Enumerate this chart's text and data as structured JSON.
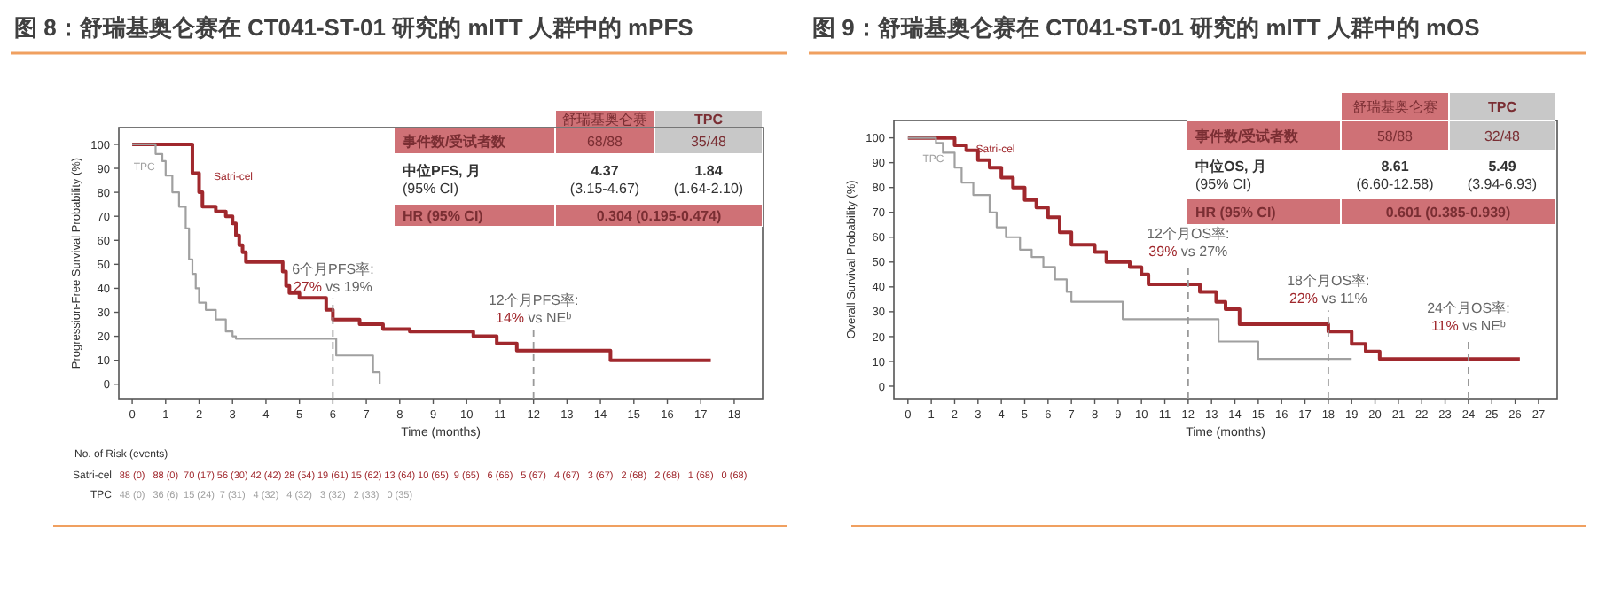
{
  "chart_data": [
    {
      "type": "step",
      "title": "图 8：舒瑞基奥仑赛在 CT041-ST-01 研究的 mITT 人群中的 mPFS",
      "xlabel": "Time (months)",
      "ylabel": "Progression-Free Survival Probability (%)",
      "xlim": [
        -0.4,
        18.85
      ],
      "ylim": [
        -6,
        107
      ],
      "xticks": [
        0,
        1,
        2,
        3,
        4,
        5,
        6,
        7,
        8,
        9,
        10,
        11,
        12,
        13,
        14,
        15,
        16,
        17,
        18
      ],
      "yticks": [
        0,
        10,
        20,
        30,
        40,
        50,
        60,
        70,
        80,
        90,
        100
      ],
      "series": [
        {
          "name": "Satri-cel",
          "color": "#a0282d",
          "x": [
            0,
            1.7,
            1.8,
            2.0,
            2.1,
            2.5,
            2.8,
            3.0,
            3.1,
            3.2,
            3.3,
            3.4,
            4.3,
            4.5,
            4.6,
            4.7,
            5.0,
            5.6,
            5.8,
            6.0,
            6.8,
            7.5,
            8.3,
            10.2,
            10.9,
            11.5,
            14.3,
            17.3
          ],
          "values": [
            100,
            100,
            88,
            80,
            74,
            72,
            70,
            67,
            62,
            58,
            55,
            51,
            51,
            47,
            41,
            38,
            36,
            36,
            31,
            27,
            25,
            23,
            22,
            20,
            17,
            14,
            10,
            10
          ]
        },
        {
          "name": "TPC",
          "color": "#a0a0a0",
          "x": [
            0,
            0.7,
            0.9,
            1.0,
            1.2,
            1.4,
            1.6,
            1.7,
            1.8,
            1.9,
            2.0,
            2.2,
            2.5,
            2.8,
            3.0,
            3.1,
            5.9,
            6.1,
            7.0,
            7.2,
            7.4
          ],
          "values": [
            100,
            96,
            93,
            87,
            80,
            74,
            65,
            52,
            46,
            40,
            34,
            31,
            27,
            22,
            20,
            19,
            19,
            12,
            12,
            5,
            0
          ]
        }
      ],
      "ref_lines": [
        {
          "axis": "x",
          "value": 6,
          "label": "6个月PFS率:\n27% vs 19%",
          "line_style": "dashed",
          "color": "#999999"
        },
        {
          "axis": "x",
          "value": 12,
          "label": "12个月PFS率:\n14% vs NEᵇ",
          "line_style": "dashed",
          "color": "#999999"
        }
      ],
      "annotations": [
        "舒瑞基奥仑赛",
        "TPC",
        "事件数/受试者数",
        "68/88",
        "35/48",
        "中位PFS, 月\n(95% CI)",
        "4.37\n(3.15-4.67)",
        "1.84\n(1.64-2.10)",
        "HR (95% CI)",
        "0.304 (0.195-0.474)",
        "No. of Risk (events)",
        "Satri-cel  88 (0)  88 (0)  70 (17)  56 (30)  42 (42)  28 (54)  19 (61)  15 (62)  13 (64)  10 (65)  9 (65)  6 (66)  5 (67)  4 (67)  3 (67)  2 (68)  2 (68)  1 (68)  0 (68)",
        "TPC  48 (0)  36 (6)  15 (24)  7 (31)  4 (32)  4 (32)  3 (32)  2 (33)  0 (35)"
      ]
    },
    {
      "type": "step",
      "title": "图 9：舒瑞基奥仑赛在 CT041-ST-01 研究的 mITT 人群中的 mOS",
      "xlabel": "Time (months)",
      "ylabel": "Overall Survival Probability (%)",
      "xlim": [
        -0.6,
        27.8
      ],
      "ylim": [
        -5,
        107
      ],
      "xticks": [
        0,
        1,
        2,
        3,
        4,
        5,
        6,
        7,
        8,
        9,
        10,
        11,
        12,
        13,
        14,
        15,
        16,
        17,
        18,
        19,
        20,
        21,
        22,
        23,
        24,
        25,
        26,
        27
      ],
      "yticks": [
        0,
        10,
        20,
        30,
        40,
        50,
        60,
        70,
        80,
        90,
        100
      ],
      "series": [
        {
          "name": "Satri-cel",
          "color": "#a0282d",
          "x": [
            0,
            1.5,
            2.0,
            2.5,
            3.0,
            3.5,
            4.0,
            4.5,
            5.0,
            5.5,
            6.0,
            6.5,
            7.0,
            8.0,
            8.5,
            9.5,
            10.0,
            10.3,
            11.8,
            12.5,
            13.2,
            13.6,
            14.2,
            17.0,
            18.0,
            19.0,
            19.6,
            20.2,
            26.2
          ],
          "values": [
            100,
            100,
            97,
            95,
            91,
            88,
            84,
            80,
            75,
            72,
            68,
            62,
            57,
            54,
            50,
            48,
            45,
            41,
            41,
            38,
            34,
            31,
            25,
            25,
            22,
            17,
            14,
            11,
            11
          ]
        },
        {
          "name": "TPC",
          "color": "#a0a0a0",
          "x": [
            0,
            1.2,
            1.5,
            2.0,
            2.3,
            2.8,
            3.5,
            3.8,
            4.2,
            4.8,
            5.3,
            5.8,
            6.3,
            6.8,
            7.0,
            9.2,
            13.0,
            13.3,
            15.0,
            19.0
          ],
          "values": [
            100,
            98,
            94,
            88,
            82,
            77,
            70,
            64,
            60,
            55,
            52,
            48,
            43,
            38,
            34,
            27,
            27,
            18,
            11,
            11
          ]
        }
      ],
      "ref_lines": [
        {
          "axis": "x",
          "value": 12,
          "label": "12个月OS率:\n39% vs 27%",
          "line_style": "dashed",
          "color": "#999999"
        },
        {
          "axis": "x",
          "value": 18,
          "label": "18个月OS率:\n22% vs 11%",
          "line_style": "dashed",
          "color": "#999999"
        },
        {
          "axis": "x",
          "value": 24,
          "label": "24个月OS率:\n11% vs NEᵇ",
          "line_style": "dashed",
          "color": "#999999"
        }
      ],
      "annotations": [
        "舒瑞基奥仑赛",
        "TPC",
        "事件数/受试者数",
        "58/88",
        "32/48",
        "中位OS, 月\n(95% CI)",
        "8.61\n(6.60-12.58)",
        "5.49\n(3.94-6.93)",
        "HR (95% CI)",
        "0.601 (0.385-0.939)"
      ]
    }
  ]
}
